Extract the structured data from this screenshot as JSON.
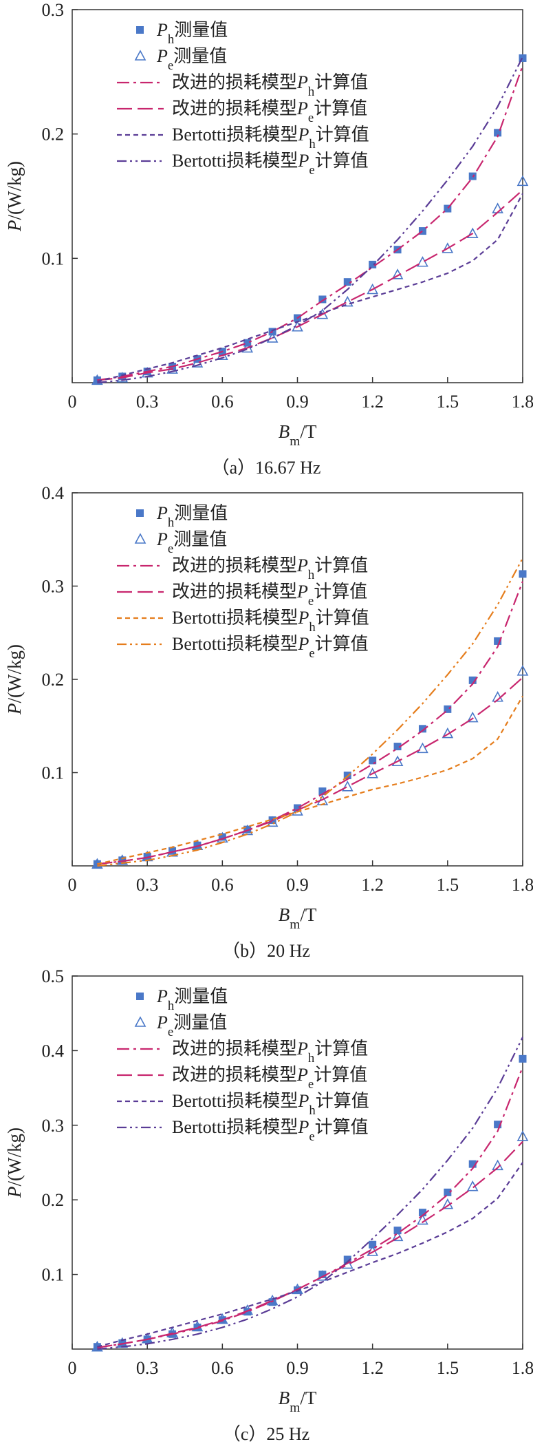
{
  "chart_data": [
    {
      "type": "line",
      "caption": "（a）16.67 Hz",
      "xlabel": {
        "main": "B",
        "sub": "m",
        "unit": "/T"
      },
      "ylabel": {
        "main": "P",
        "unit": "/(W/kg)"
      },
      "xlim": [
        0,
        1.8
      ],
      "ylim": [
        0,
        0.3
      ],
      "xticks": [
        "0",
        "0.3",
        "0.6",
        "0.9",
        "1.2",
        "1.5",
        "1.8"
      ],
      "yticks": [
        "0.1",
        "0.2",
        "0.3"
      ],
      "legend_position": "top-left",
      "colors": {
        "measured_h": "#4a78c8",
        "measured_e": "#4a78c8",
        "improved": "#c8266e",
        "bertotti": "#5a3c96"
      },
      "series": [
        {
          "name_main": "P",
          "name_sub": "h",
          "name_rest": "测量值",
          "kind": "markers",
          "marker": "square",
          "x": [
            0.1,
            0.2,
            0.3,
            0.4,
            0.5,
            0.6,
            0.7,
            0.8,
            0.9,
            1.0,
            1.1,
            1.2,
            1.3,
            1.4,
            1.5,
            1.6,
            1.7,
            1.8
          ],
          "y": [
            0.002,
            0.005,
            0.009,
            0.013,
            0.019,
            0.025,
            0.032,
            0.041,
            0.052,
            0.067,
            0.081,
            0.095,
            0.107,
            0.122,
            0.14,
            0.166,
            0.201,
            0.261
          ]
        },
        {
          "name_main": "P",
          "name_sub": "e",
          "name_rest": "测量值",
          "kind": "markers",
          "marker": "triangle",
          "x": [
            0.1,
            0.2,
            0.3,
            0.4,
            0.5,
            0.6,
            0.7,
            0.8,
            0.9,
            1.0,
            1.1,
            1.2,
            1.3,
            1.4,
            1.5,
            1.6,
            1.7,
            1.8
          ],
          "y": [
            0.002,
            0.004,
            0.008,
            0.011,
            0.016,
            0.022,
            0.028,
            0.036,
            0.045,
            0.055,
            0.065,
            0.075,
            0.087,
            0.097,
            0.108,
            0.12,
            0.14,
            0.162
          ]
        },
        {
          "name_pre": "改进的损耗模型",
          "name_main": "P",
          "name_sub": "h",
          "name_rest": "计算值",
          "kind": "line",
          "dash": "dashdot",
          "x": [
            0.1,
            0.2,
            0.3,
            0.4,
            0.5,
            0.6,
            0.7,
            0.8,
            0.9,
            1.0,
            1.1,
            1.2,
            1.3,
            1.4,
            1.5,
            1.6,
            1.7,
            1.8
          ],
          "y": [
            0.002,
            0.005,
            0.009,
            0.013,
            0.019,
            0.025,
            0.032,
            0.041,
            0.052,
            0.066,
            0.079,
            0.093,
            0.107,
            0.122,
            0.14,
            0.165,
            0.198,
            0.255
          ]
        },
        {
          "name_pre": "改进的损耗模型",
          "name_main": "P",
          "name_sub": "e",
          "name_rest": "计算值",
          "kind": "line",
          "dash": "longdash",
          "x": [
            0.1,
            0.2,
            0.3,
            0.4,
            0.5,
            0.6,
            0.7,
            0.8,
            0.9,
            1.0,
            1.1,
            1.2,
            1.3,
            1.4,
            1.5,
            1.6,
            1.7,
            1.8
          ],
          "y": [
            0.002,
            0.004,
            0.008,
            0.011,
            0.016,
            0.022,
            0.028,
            0.036,
            0.045,
            0.055,
            0.065,
            0.075,
            0.086,
            0.097,
            0.108,
            0.12,
            0.137,
            0.155
          ]
        },
        {
          "name_pre": "Bertotti损耗模型",
          "name_main": "P",
          "name_sub": "h",
          "name_rest": "计算值",
          "kind": "line",
          "dash": "shortdash",
          "x": [
            0.1,
            0.2,
            0.3,
            0.4,
            0.5,
            0.6,
            0.7,
            0.8,
            0.9,
            1.0,
            1.1,
            1.2,
            1.3,
            1.4,
            1.5,
            1.6,
            1.7,
            1.8
          ],
          "y": [
            0.001,
            0.006,
            0.011,
            0.016,
            0.022,
            0.028,
            0.035,
            0.042,
            0.049,
            0.056,
            0.063,
            0.069,
            0.075,
            0.081,
            0.088,
            0.098,
            0.115,
            0.152
          ]
        },
        {
          "name_pre": "Bertotti损耗模型",
          "name_main": "P",
          "name_sub": "e",
          "name_rest": "计算值",
          "kind": "line",
          "dash": "dashdotdot",
          "x": [
            0.1,
            0.2,
            0.3,
            0.4,
            0.5,
            0.6,
            0.7,
            0.8,
            0.9,
            1.0,
            1.1,
            1.2,
            1.3,
            1.4,
            1.5,
            1.6,
            1.7,
            1.8
          ],
          "y": [
            0.0,
            0.002,
            0.005,
            0.009,
            0.014,
            0.02,
            0.027,
            0.036,
            0.046,
            0.058,
            0.075,
            0.094,
            0.115,
            0.138,
            0.163,
            0.19,
            0.222,
            0.262
          ]
        }
      ]
    },
    {
      "type": "line",
      "caption": "（b）20 Hz",
      "xlabel": {
        "main": "B",
        "sub": "m",
        "unit": "/T"
      },
      "ylabel": {
        "main": "P",
        "unit": "/(W/kg)"
      },
      "xlim": [
        0,
        1.8
      ],
      "ylim": [
        0,
        0.4
      ],
      "xticks": [
        "0",
        "0.3",
        "0.6",
        "0.9",
        "1.2",
        "1.5",
        "1.8"
      ],
      "yticks": [
        "0.1",
        "0.2",
        "0.3",
        "0.4"
      ],
      "legend_position": "top-left",
      "colors": {
        "measured_h": "#4a78c8",
        "measured_e": "#4a78c8",
        "improved": "#c8266e",
        "bertotti": "#e57d1c"
      },
      "series": [
        {
          "name_main": "P",
          "name_sub": "h",
          "name_rest": "测量值",
          "kind": "markers",
          "marker": "square",
          "x": [
            0.1,
            0.2,
            0.3,
            0.4,
            0.5,
            0.6,
            0.7,
            0.8,
            0.9,
            1.0,
            1.1,
            1.2,
            1.3,
            1.4,
            1.5,
            1.6,
            1.7,
            1.8
          ],
          "y": [
            0.002,
            0.006,
            0.01,
            0.016,
            0.022,
            0.031,
            0.039,
            0.049,
            0.062,
            0.08,
            0.097,
            0.113,
            0.128,
            0.147,
            0.168,
            0.199,
            0.241,
            0.313
          ]
        },
        {
          "name_main": "P",
          "name_sub": "e",
          "name_rest": "测量值",
          "kind": "markers",
          "marker": "triangle",
          "x": [
            0.1,
            0.2,
            0.3,
            0.4,
            0.5,
            0.6,
            0.7,
            0.8,
            0.9,
            1.0,
            1.1,
            1.2,
            1.3,
            1.4,
            1.5,
            1.6,
            1.7,
            1.8
          ],
          "y": [
            0.002,
            0.006,
            0.01,
            0.015,
            0.022,
            0.03,
            0.038,
            0.047,
            0.059,
            0.07,
            0.085,
            0.099,
            0.112,
            0.126,
            0.142,
            0.159,
            0.181,
            0.209
          ]
        },
        {
          "name_pre": "改进的损耗模型",
          "name_main": "P",
          "name_sub": "h",
          "name_rest": "计算值",
          "kind": "line",
          "dash": "dashdot",
          "x": [
            0.1,
            0.2,
            0.3,
            0.4,
            0.5,
            0.6,
            0.7,
            0.8,
            0.9,
            1.0,
            1.1,
            1.2,
            1.3,
            1.4,
            1.5,
            1.6,
            1.7,
            1.8
          ],
          "y": [
            0.002,
            0.005,
            0.009,
            0.015,
            0.021,
            0.029,
            0.038,
            0.049,
            0.062,
            0.077,
            0.093,
            0.109,
            0.126,
            0.145,
            0.167,
            0.195,
            0.235,
            0.305
          ]
        },
        {
          "name_pre": "改进的损耗模型",
          "name_main": "P",
          "name_sub": "e",
          "name_rest": "计算值",
          "kind": "line",
          "dash": "longdash",
          "x": [
            0.1,
            0.2,
            0.3,
            0.4,
            0.5,
            0.6,
            0.7,
            0.8,
            0.9,
            1.0,
            1.1,
            1.2,
            1.3,
            1.4,
            1.5,
            1.6,
            1.7,
            1.8
          ],
          "y": [
            0.002,
            0.005,
            0.009,
            0.015,
            0.021,
            0.029,
            0.038,
            0.048,
            0.06,
            0.071,
            0.085,
            0.099,
            0.112,
            0.126,
            0.141,
            0.158,
            0.178,
            0.202
          ]
        },
        {
          "name_pre": "Bertotti损耗模型",
          "name_main": "P",
          "name_sub": "h",
          "name_rest": "计算值",
          "kind": "line",
          "dash": "shortdash",
          "x": [
            0.1,
            0.2,
            0.3,
            0.4,
            0.5,
            0.6,
            0.7,
            0.8,
            0.9,
            1.0,
            1.1,
            1.2,
            1.3,
            1.4,
            1.5,
            1.6,
            1.7,
            1.8
          ],
          "y": [
            0.002,
            0.008,
            0.014,
            0.02,
            0.027,
            0.034,
            0.042,
            0.05,
            0.058,
            0.066,
            0.074,
            0.082,
            0.088,
            0.095,
            0.103,
            0.115,
            0.136,
            0.182
          ]
        },
        {
          "name_pre": "Bertotti损耗模型",
          "name_main": "P",
          "name_sub": "e",
          "name_rest": "计算值",
          "kind": "line",
          "dash": "dashdotdot",
          "x": [
            0.1,
            0.2,
            0.3,
            0.4,
            0.5,
            0.6,
            0.7,
            0.8,
            0.9,
            1.0,
            1.1,
            1.2,
            1.3,
            1.4,
            1.5,
            1.6,
            1.7,
            1.8
          ],
          "y": [
            0.0,
            0.003,
            0.006,
            0.011,
            0.017,
            0.025,
            0.034,
            0.045,
            0.058,
            0.074,
            0.096,
            0.12,
            0.146,
            0.174,
            0.205,
            0.238,
            0.28,
            0.33
          ]
        }
      ]
    },
    {
      "type": "line",
      "caption": "（c）25 Hz",
      "xlabel": {
        "main": "B",
        "sub": "m",
        "unit": "/T"
      },
      "ylabel": {
        "main": "P",
        "unit": "/(W/kg)"
      },
      "xlim": [
        0,
        1.8
      ],
      "ylim": [
        0,
        0.5
      ],
      "xticks": [
        "0",
        "0.3",
        "0.6",
        "0.9",
        "1.2",
        "1.5",
        "1.8"
      ],
      "yticks": [
        "0.1",
        "0.2",
        "0.3",
        "0.4",
        "0.5"
      ],
      "legend_position": "top-left",
      "colors": {
        "measured_h": "#4a78c8",
        "measured_e": "#4a78c8",
        "improved": "#c8266e",
        "bertotti": "#5a3c96"
      },
      "series": [
        {
          "name_main": "P",
          "name_sub": "h",
          "name_rest": "测量值",
          "kind": "markers",
          "marker": "square",
          "x": [
            0.1,
            0.2,
            0.3,
            0.4,
            0.5,
            0.6,
            0.7,
            0.8,
            0.9,
            1.0,
            1.1,
            1.2,
            1.3,
            1.4,
            1.5,
            1.6,
            1.7,
            1.8
          ],
          "y": [
            0.003,
            0.008,
            0.013,
            0.02,
            0.029,
            0.039,
            0.05,
            0.063,
            0.079,
            0.1,
            0.12,
            0.14,
            0.159,
            0.183,
            0.21,
            0.248,
            0.301,
            0.389
          ]
        },
        {
          "name_main": "P",
          "name_sub": "e",
          "name_rest": "测量值",
          "kind": "markers",
          "marker": "triangle",
          "x": [
            0.1,
            0.2,
            0.3,
            0.4,
            0.5,
            0.6,
            0.7,
            0.8,
            0.9,
            1.0,
            1.1,
            1.2,
            1.3,
            1.4,
            1.5,
            1.6,
            1.7,
            1.8
          ],
          "y": [
            0.003,
            0.008,
            0.014,
            0.022,
            0.03,
            0.04,
            0.052,
            0.065,
            0.08,
            0.098,
            0.114,
            0.131,
            0.151,
            0.173,
            0.194,
            0.218,
            0.246,
            0.285
          ]
        },
        {
          "name_pre": "改进的损耗模型",
          "name_main": "P",
          "name_sub": "h",
          "name_rest": "计算值",
          "kind": "line",
          "dash": "dashdot",
          "x": [
            0.1,
            0.2,
            0.3,
            0.4,
            0.5,
            0.6,
            0.7,
            0.8,
            0.9,
            1.0,
            1.1,
            1.2,
            1.3,
            1.4,
            1.5,
            1.6,
            1.7,
            1.8
          ],
          "y": [
            0.002,
            0.007,
            0.013,
            0.02,
            0.028,
            0.038,
            0.05,
            0.064,
            0.08,
            0.097,
            0.115,
            0.134,
            0.155,
            0.179,
            0.207,
            0.242,
            0.292,
            0.378
          ]
        },
        {
          "name_pre": "改进的损耗模型",
          "name_main": "P",
          "name_sub": "e",
          "name_rest": "计算值",
          "kind": "line",
          "dash": "longdash",
          "x": [
            0.1,
            0.2,
            0.3,
            0.4,
            0.5,
            0.6,
            0.7,
            0.8,
            0.9,
            1.0,
            1.1,
            1.2,
            1.3,
            1.4,
            1.5,
            1.6,
            1.7,
            1.8
          ],
          "y": [
            0.002,
            0.007,
            0.013,
            0.021,
            0.029,
            0.039,
            0.051,
            0.065,
            0.08,
            0.097,
            0.113,
            0.13,
            0.149,
            0.17,
            0.192,
            0.216,
            0.243,
            0.278
          ]
        },
        {
          "name_pre": "Bertotti损耗模型",
          "name_main": "P",
          "name_sub": "h",
          "name_rest": "计算值",
          "kind": "line",
          "dash": "shortdash",
          "x": [
            0.1,
            0.2,
            0.3,
            0.4,
            0.5,
            0.6,
            0.7,
            0.8,
            0.9,
            1.0,
            1.1,
            1.2,
            1.3,
            1.4,
            1.5,
            1.6,
            1.7,
            1.8
          ],
          "y": [
            0.003,
            0.012,
            0.02,
            0.029,
            0.038,
            0.047,
            0.057,
            0.067,
            0.078,
            0.09,
            0.103,
            0.116,
            0.128,
            0.142,
            0.157,
            0.175,
            0.202,
            0.25
          ]
        },
        {
          "name_pre": "Bertotti损耗模型",
          "name_main": "P",
          "name_sub": "e",
          "name_rest": "计算值",
          "kind": "line",
          "dash": "dashdotdot",
          "x": [
            0.1,
            0.2,
            0.3,
            0.4,
            0.5,
            0.6,
            0.7,
            0.8,
            0.9,
            1.0,
            1.1,
            1.2,
            1.3,
            1.4,
            1.5,
            1.6,
            1.7,
            1.8
          ],
          "y": [
            0.0,
            0.003,
            0.007,
            0.013,
            0.02,
            0.029,
            0.04,
            0.054,
            0.07,
            0.09,
            0.117,
            0.148,
            0.18,
            0.214,
            0.253,
            0.296,
            0.35,
            0.418
          ]
        }
      ]
    }
  ]
}
